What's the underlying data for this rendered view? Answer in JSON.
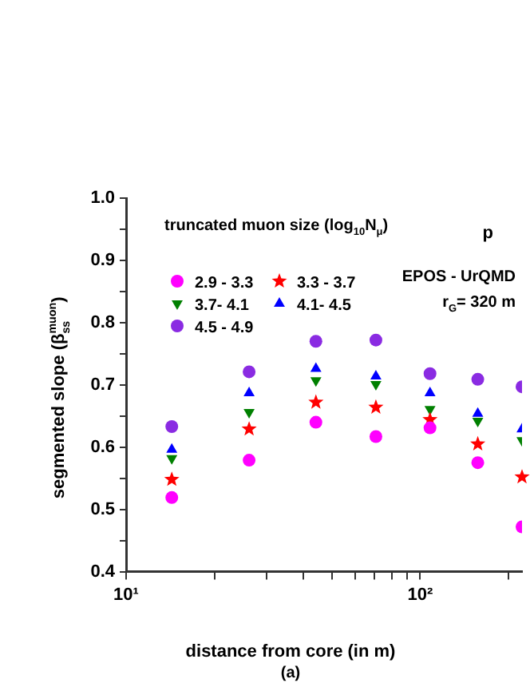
{
  "chart_data": {
    "type": "scatter",
    "xlabel": "distance from core (in m)",
    "ylabel": "segmented slope (β$_{ss}$$^{muon}$)",
    "legend_title": "truncated muon size (log$_{10}$N$_{μ}$)",
    "annotations": [
      "p",
      "EPOS - UrQMD",
      "r$_{G}$= 320 m",
      "(a)"
    ],
    "x": [
      14.3,
      26.2,
      44.2,
      70.7,
      108,
      157,
      222
    ],
    "series": [
      {
        "name": "2.9 - 3.3",
        "color": "#ff00ff",
        "marker": "circle",
        "values": [
          0.519,
          0.579,
          0.64,
          0.617,
          0.631,
          0.575,
          0.472
        ]
      },
      {
        "name": "3.3 - 3.7",
        "color": "#ff0000",
        "marker": "star",
        "values": [
          0.548,
          0.629,
          0.672,
          0.664,
          0.644,
          0.605,
          0.552
        ]
      },
      {
        "name": "3.7- 4.1",
        "color": "#008000",
        "marker": "triangle-down",
        "values": [
          0.582,
          0.656,
          0.707,
          0.701,
          0.661,
          0.642,
          0.611
        ]
      },
      {
        "name": "4.1- 4.5",
        "color": "#0000ff",
        "marker": "triangle",
        "values": [
          0.596,
          0.687,
          0.726,
          0.714,
          0.687,
          0.654,
          0.629
        ]
      },
      {
        "name": "4.5 - 4.9",
        "color": "#8a2be2",
        "marker": "circle",
        "values": [
          0.633,
          0.721,
          0.77,
          0.772,
          0.718,
          0.709,
          0.697
        ]
      }
    ],
    "log": "x",
    "xlim": [
      10,
      222
    ],
    "xticks": [
      {
        "value": 10,
        "label": "10¹"
      },
      {
        "value": 20,
        "label": null
      },
      {
        "value": 30,
        "label": null
      },
      {
        "value": 40,
        "label": null
      },
      {
        "value": 50,
        "label": null
      },
      {
        "value": 60,
        "label": null
      },
      {
        "value": 70,
        "label": null
      },
      {
        "value": 80,
        "label": null
      },
      {
        "value": 90,
        "label": null
      },
      {
        "value": 100,
        "label": "10²"
      },
      {
        "value": 200,
        "label": null
      }
    ],
    "ylim": [
      0.4,
      1.0
    ],
    "yticks": [
      0.4,
      {
        "value": 0.45,
        "label": null
      },
      0.5,
      {
        "value": 0.55,
        "label": null
      },
      0.6,
      {
        "value": 0.65,
        "label": null
      },
      0.7,
      {
        "value": 0.75,
        "label": null
      },
      0.8,
      {
        "value": 0.85,
        "label": null
      },
      0.9,
      {
        "value": 0.95,
        "label": null
      },
      {
        "value": 1.0,
        "label": "1.0"
      }
    ],
    "grid": false,
    "legend": "top left"
  }
}
